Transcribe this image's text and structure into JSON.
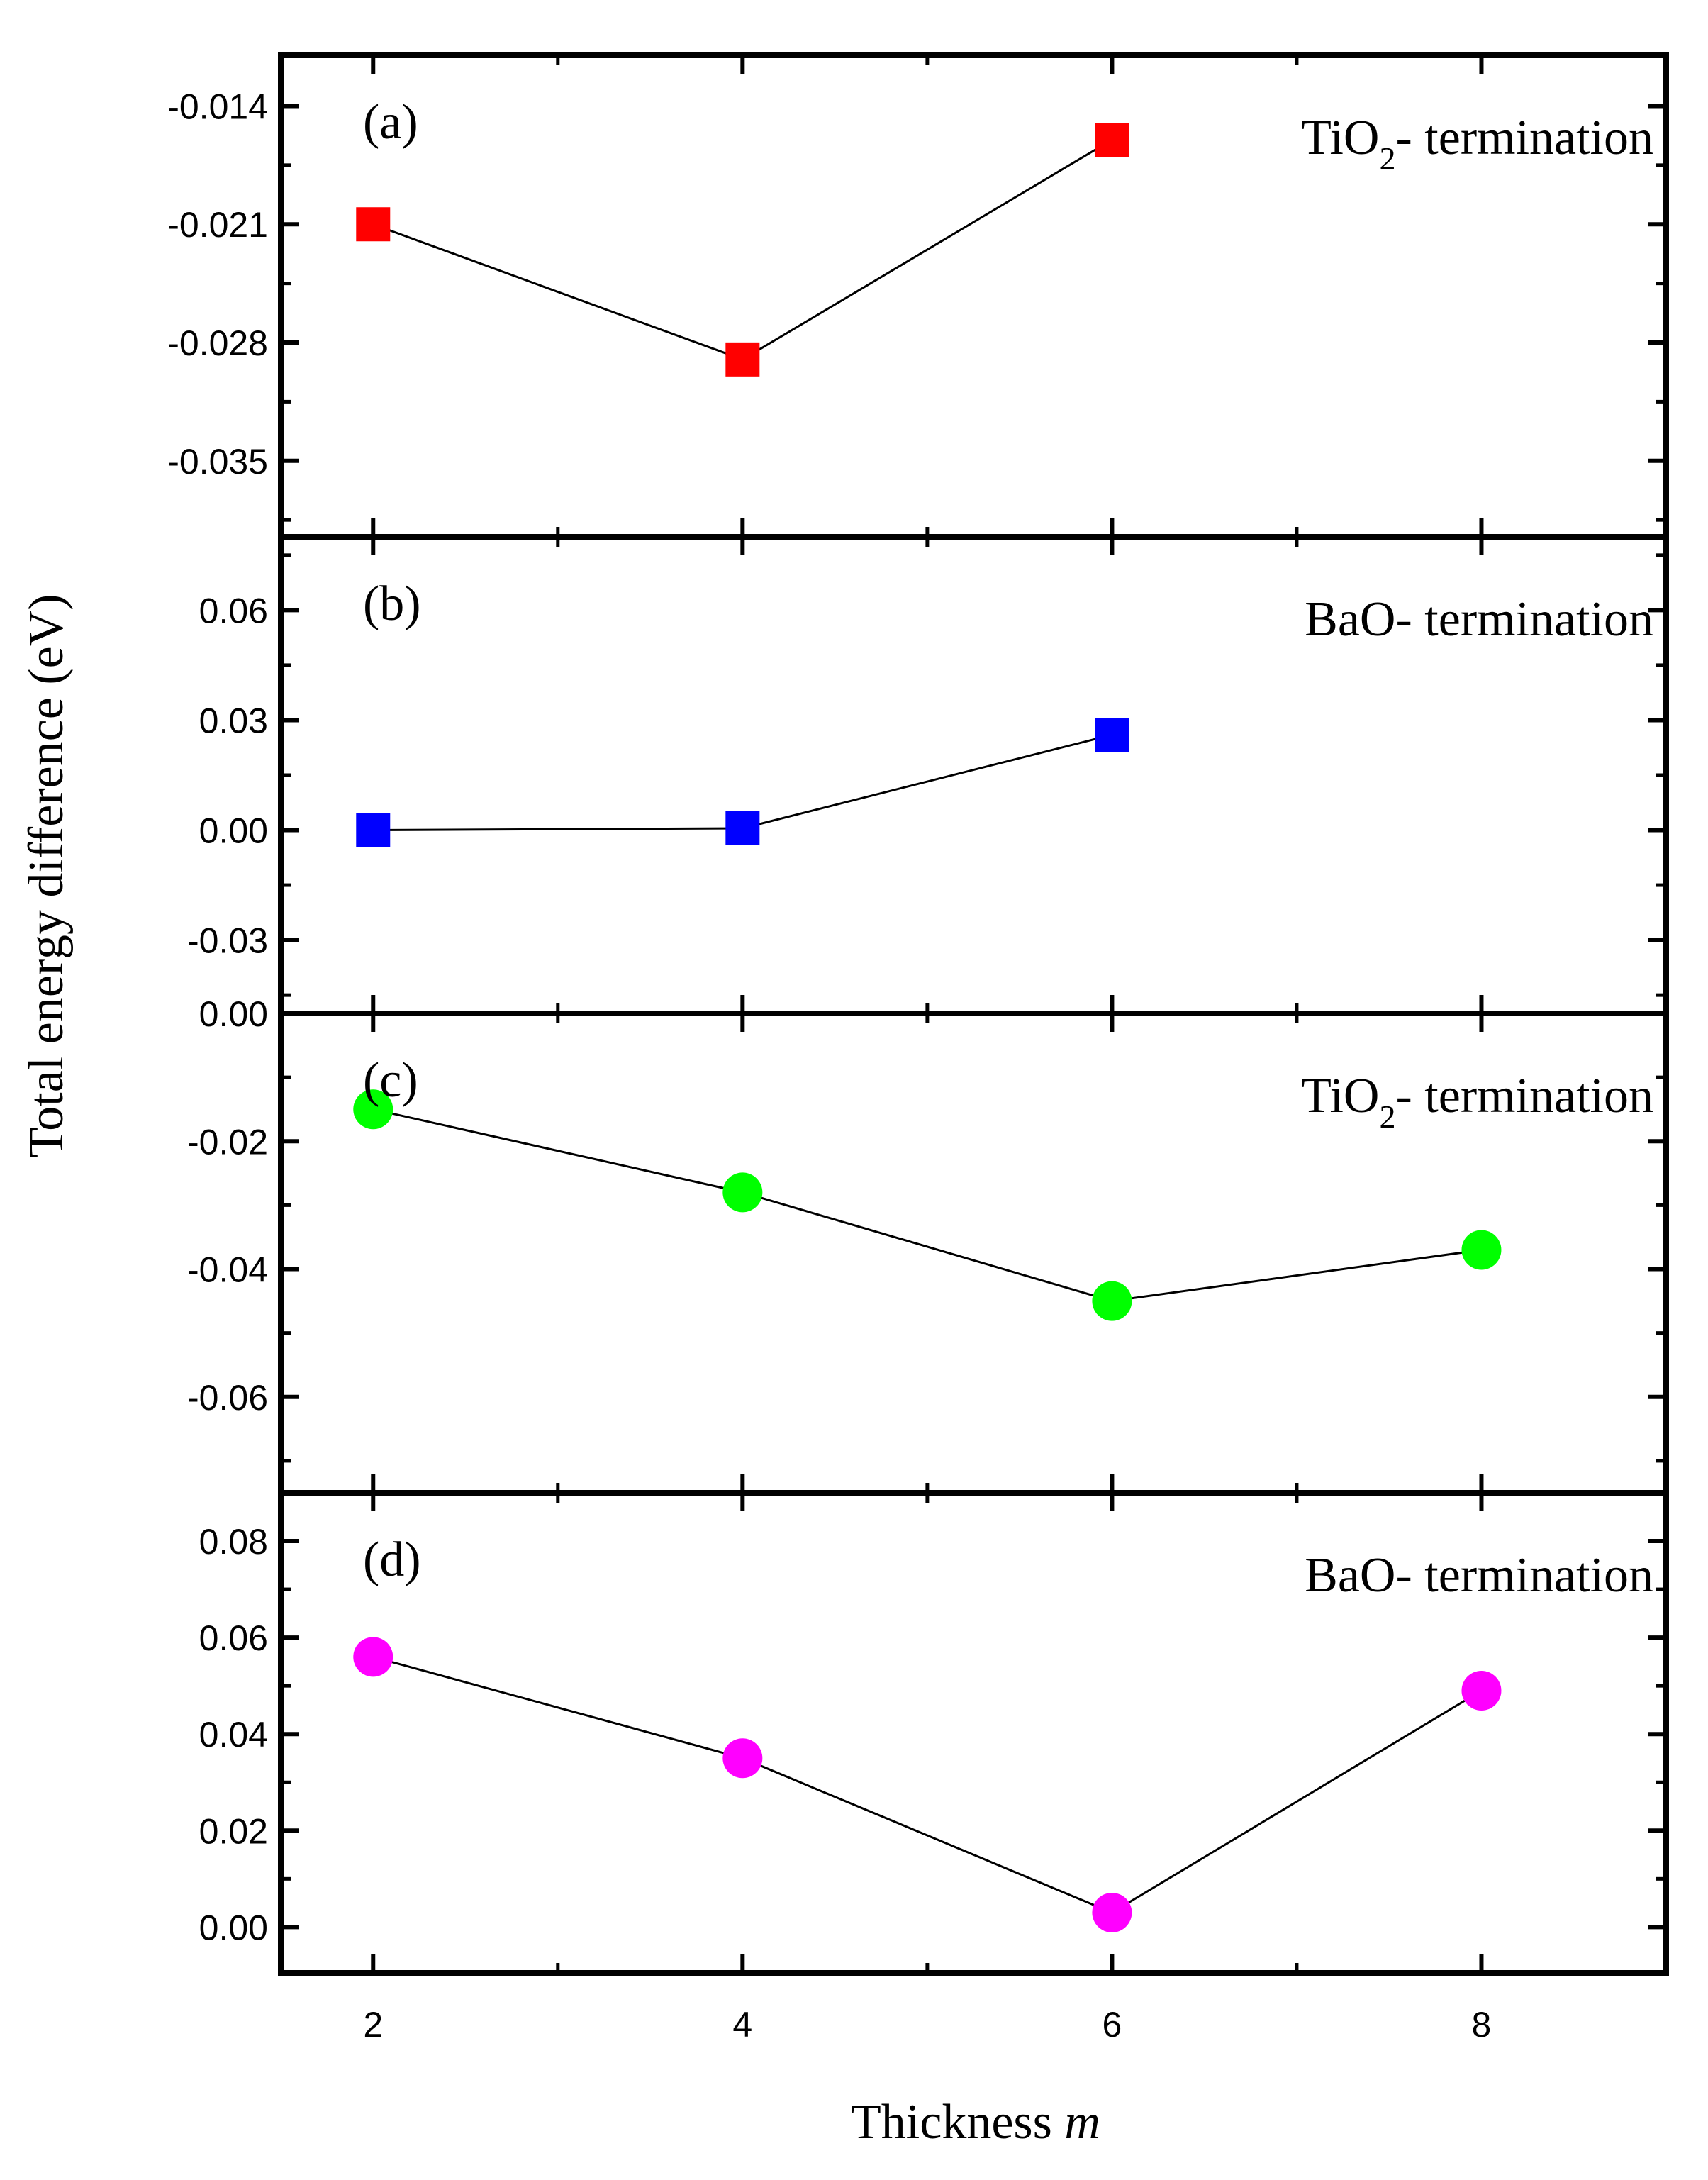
{
  "chart_data": [
    {
      "type": "line",
      "panel_id": "a",
      "panel_label": "(a)",
      "annotation": {
        "main": "TiO",
        "sub": "2",
        "tail": "- termination"
      },
      "ylim": [
        -0.0395,
        -0.011
      ],
      "yticks": [
        -0.014,
        -0.021,
        -0.028,
        -0.035
      ],
      "ytick_labels": [
        "-0.014",
        "-0.021",
        "-0.028",
        "-0.035"
      ],
      "marker": "square",
      "color": "#ff0000",
      "series": [
        {
          "name": "TiO2- termination",
          "x": [
            2,
            4,
            6
          ],
          "y": [
            -0.021,
            -0.029,
            -0.016
          ]
        }
      ]
    },
    {
      "type": "line",
      "panel_id": "b",
      "panel_label": "(b)",
      "annotation": {
        "main": "BaO",
        "sub": "",
        "tail": "- termination"
      },
      "ylim": [
        -0.05,
        0.08
      ],
      "yticks": [
        0.06,
        0.03,
        0.0,
        -0.03
      ],
      "ytick_labels": [
        "0.06",
        "0.03",
        "0.00",
        "-0.03"
      ],
      "marker": "square",
      "color": "#0000ff",
      "series": [
        {
          "name": "BaO- termination",
          "x": [
            2,
            4,
            6
          ],
          "y": [
            0.0,
            0.0005,
            0.026
          ]
        }
      ]
    },
    {
      "type": "line",
      "panel_id": "c",
      "panel_label": "(c)",
      "annotation": {
        "main": "TiO",
        "sub": "2",
        "tail": "- termination"
      },
      "ylim": [
        -0.075,
        0.0
      ],
      "yticks": [
        0.0,
        -0.02,
        -0.04,
        -0.06
      ],
      "ytick_labels": [
        "0.00",
        "-0.02",
        "-0.04",
        "-0.06"
      ],
      "marker": "circle",
      "color": "#00ff00",
      "series": [
        {
          "name": "TiO2- termination",
          "x": [
            2,
            4,
            6,
            8
          ],
          "y": [
            -0.015,
            -0.028,
            -0.045,
            -0.037
          ]
        }
      ]
    },
    {
      "type": "line",
      "panel_id": "d",
      "panel_label": "(d)",
      "annotation": {
        "main": "BaO",
        "sub": "",
        "tail": "- termination"
      },
      "ylim": [
        -0.0095,
        0.09
      ],
      "yticks": [
        0.08,
        0.06,
        0.04,
        0.02,
        0.0
      ],
      "ytick_labels": [
        "0.08",
        "0.06",
        "0.04",
        "0.02",
        "0.00"
      ],
      "marker": "circle",
      "color": "#ff00ff",
      "series": [
        {
          "name": "BaO- termination",
          "x": [
            2,
            4,
            6,
            8
          ],
          "y": [
            0.056,
            0.035,
            0.003,
            0.049
          ]
        }
      ]
    }
  ],
  "x_axis": {
    "xlim": [
      1.5,
      9
    ],
    "ticks": [
      2,
      4,
      6,
      8
    ],
    "tick_labels": [
      "2",
      "4",
      "6",
      "8"
    ],
    "label_main": "Thickness ",
    "label_italic": "m"
  },
  "y_axis": {
    "label": "Total energy difference (eV)"
  }
}
